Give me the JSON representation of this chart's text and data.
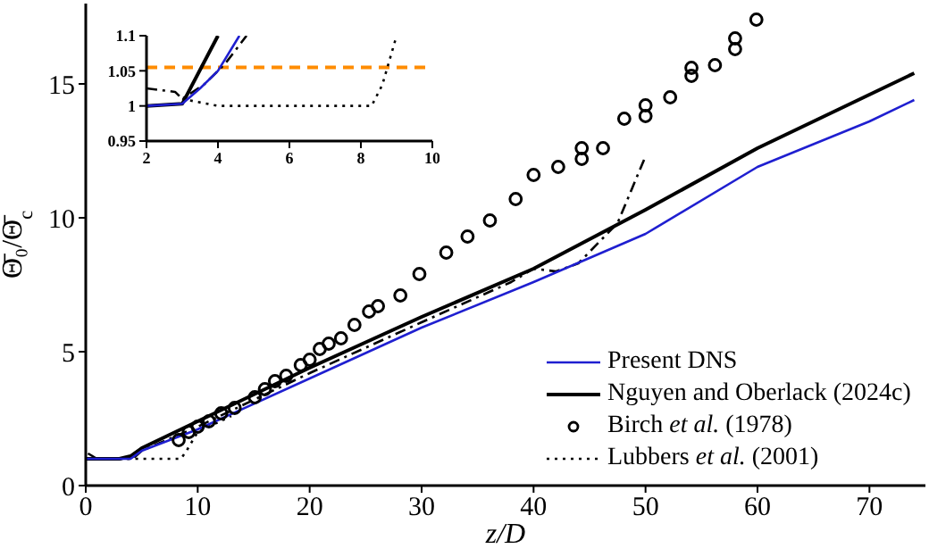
{
  "chart_data": [
    {
      "type": "line",
      "xlabel": "z/D",
      "ylabel": "Θ̄₀/Θ̄$_{c}$",
      "xlim": [
        0,
        75
      ],
      "ylim": [
        0,
        18
      ],
      "xticks": [
        0,
        10,
        20,
        30,
        40,
        50,
        60,
        70
      ],
      "yticks": [
        0,
        5,
        10,
        15
      ],
      "legend": "bottom right",
      "grid": false,
      "series": [
        {
          "name": "Present DNS",
          "color": "#1f1fd0",
          "line_style": "solid",
          "x": [
            0,
            3,
            4,
            5,
            10,
            20,
            30,
            40,
            50,
            60,
            70,
            74
          ],
          "values": [
            1,
            1,
            1.0,
            1.3,
            2.1,
            4.0,
            5.9,
            7.6,
            9.4,
            11.9,
            13.6,
            14.4
          ]
        },
        {
          "name": "Nguyen and Oberlack (2024c)",
          "color": "#000000",
          "line_style": "solid",
          "x": [
            0,
            3,
            4,
            5,
            10,
            20,
            30,
            40,
            50,
            60,
            70,
            74
          ],
          "values": [
            1,
            1,
            1.1,
            1.4,
            2.4,
            4.4,
            6.3,
            8.1,
            10.3,
            12.6,
            14.6,
            15.4
          ]
        },
        {
          "name": "Birch et al. (1978)",
          "type": "scatter",
          "marker": "circle",
          "color": "#000000",
          "x": [
            8.3,
            9.2,
            10.0,
            11.0,
            12.1,
            13.3,
            15.1,
            16.0,
            16.9,
            17.9,
            19.2,
            20.0,
            20.9,
            21.7,
            22.8,
            24.0,
            25.3,
            26.1,
            28.1,
            29.8,
            32.2,
            34.1,
            36.1,
            38.4,
            40.0,
            42.2,
            44.3,
            44.3,
            46.2,
            48.1,
            50.0,
            50.0,
            52.2,
            54.1,
            54.1,
            56.2,
            58.0,
            58.0,
            59.9
          ],
          "values": [
            1.7,
            2.0,
            2.2,
            2.4,
            2.7,
            2.9,
            3.3,
            3.6,
            3.9,
            4.1,
            4.5,
            4.7,
            5.1,
            5.3,
            5.5,
            6.0,
            6.5,
            6.7,
            7.1,
            7.9,
            8.7,
            9.3,
            9.9,
            10.7,
            11.6,
            11.9,
            12.2,
            12.6,
            12.6,
            13.7,
            13.8,
            14.2,
            14.5,
            15.3,
            15.6,
            15.7,
            16.3,
            16.7,
            17.4
          ]
        },
        {
          "name": "Lubbers et al. (2001)",
          "color": "#000000",
          "line_style": "dotted",
          "x": [
            3,
            8.5,
            9,
            10,
            12,
            13
          ],
          "values": [
            1.0,
            1.0,
            1.3,
            2.0,
            2.4,
            2.6
          ]
        },
        {
          "color": "#000000",
          "line_style": "dashdot",
          "x": [
            0.2,
            1,
            2,
            3,
            4.2,
            5,
            10,
            20,
            30,
            38,
            40,
            42,
            44,
            47.5,
            50
          ],
          "values": [
            1.2,
            1.0,
            1.0,
            1.0,
            1.0,
            1.3,
            2.2,
            4.2,
            6.1,
            7.6,
            8.1,
            8.0,
            8.3,
            9.8,
            12.3
          ]
        }
      ]
    },
    {
      "type": "line",
      "xlim": [
        2,
        10
      ],
      "ylim": [
        0.95,
        1.1
      ],
      "xticks": [
        2,
        4,
        6,
        8,
        10
      ],
      "yticks": [
        0.95,
        1,
        1.05,
        1.1
      ],
      "grid": false,
      "ref_lines": [
        {
          "axis": "y",
          "value": 1.055,
          "color": "#ff8c00",
          "line_style": "dashed"
        }
      ],
      "series": [
        {
          "color": "#1f1fd0",
          "line_style": "solid",
          "x": [
            2,
            3,
            3.5,
            4,
            4.6
          ],
          "values": [
            1.0,
            1.003,
            1.025,
            1.05,
            1.1
          ]
        },
        {
          "color": "#000000",
          "line_style": "solid",
          "x": [
            2,
            3,
            4
          ],
          "values": [
            1.0,
            1.003,
            1.1
          ]
        },
        {
          "color": "#000000",
          "line_style": "dotted",
          "x": [
            3,
            4,
            8.3,
            8.6,
            9
          ],
          "values": [
            1.01,
            1.0,
            1.0,
            1.03,
            1.1
          ]
        },
        {
          "color": "#000000",
          "line_style": "dashdot",
          "x": [
            2,
            2.8,
            3,
            3.6,
            4.2,
            4.8
          ],
          "values": [
            1.025,
            1.02,
            1.01,
            1.03,
            1.06,
            1.1
          ]
        }
      ]
    }
  ]
}
